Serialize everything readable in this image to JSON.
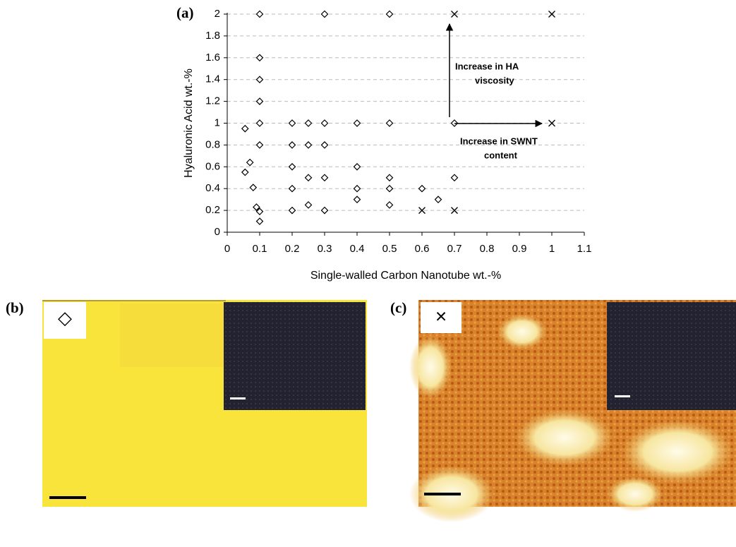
{
  "chart_data": {
    "type": "scatter",
    "panel_label": "(a)",
    "x_label": "Single-walled Carbon Nanotube wt.-%",
    "y_label": "Hyaluronic Acid wt.-%",
    "xlim": [
      0,
      1.1
    ],
    "ylim": [
      0,
      2
    ],
    "xticks": [
      0,
      0.1,
      0.2,
      0.3,
      0.4,
      0.5,
      0.6,
      0.7,
      0.8,
      0.9,
      1,
      1.1
    ],
    "yticks": [
      0,
      0.2,
      0.4,
      0.6,
      0.8,
      1,
      1.2,
      1.4,
      1.6,
      1.8,
      2
    ],
    "grid": true,
    "series": [
      {
        "marker": "diamond",
        "color": "#000000",
        "x": [
          0.1,
          0.3,
          0.5,
          0.1,
          0.1,
          0.1,
          0.1,
          0.055,
          0.2,
          0.25,
          0.3,
          0.4,
          0.5,
          0.7,
          0.1,
          0.2,
          0.25,
          0.3,
          0.07,
          0.055,
          0.2,
          0.4,
          0.25,
          0.3,
          0.5,
          0.7,
          0.08,
          0.2,
          0.4,
          0.5,
          0.6,
          0.4,
          0.65,
          0.09,
          0.1,
          0.2,
          0.25,
          0.3,
          0.5,
          0.1
        ],
        "values": [
          2,
          2,
          2,
          1.6,
          1.4,
          1.2,
          1,
          0.95,
          1,
          1,
          1,
          1,
          1,
          1,
          0.8,
          0.8,
          0.8,
          0.8,
          0.64,
          0.55,
          0.6,
          0.6,
          0.5,
          0.5,
          0.5,
          0.5,
          0.41,
          0.4,
          0.4,
          0.4,
          0.4,
          0.3,
          0.3,
          0.23,
          0.19,
          0.2,
          0.25,
          0.2,
          0.25,
          0.1
        ]
      },
      {
        "marker": "cross",
        "color": "#000000",
        "x": [
          0.7,
          1,
          1,
          0.6,
          0.7
        ],
        "values": [
          2,
          2,
          1,
          0.2,
          0.2
        ]
      }
    ],
    "annotations": [
      {
        "lines": [
          "Increase in HA",
          "viscosity"
        ]
      },
      {
        "lines": [
          "Increase in SWNT",
          "content"
        ]
      }
    ]
  },
  "panels": [
    {
      "label": "(b)",
      "symbol": "◇"
    },
    {
      "label": "(c)",
      "symbol": "×"
    }
  ]
}
